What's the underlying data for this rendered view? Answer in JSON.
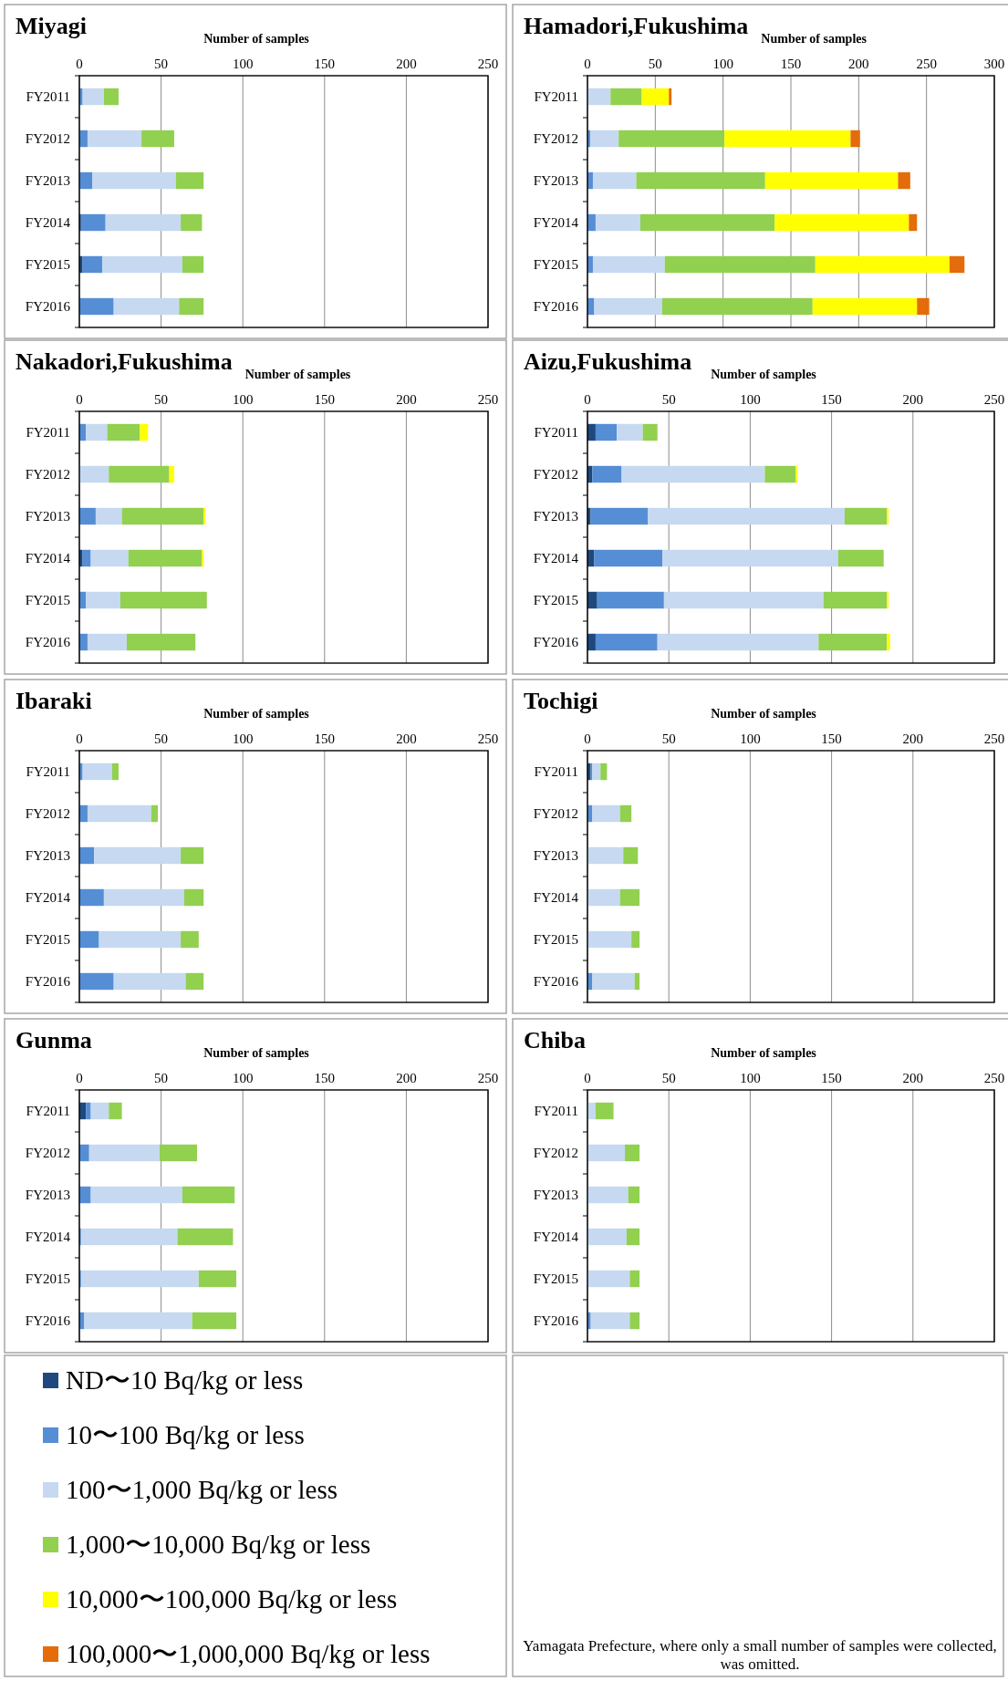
{
  "chart_data": [
    {
      "type": "bar",
      "orientation": "horizontal",
      "stacked": true,
      "title": "Miyagi",
      "xlabel": "Number of samples",
      "categories": [
        "FY2011",
        "FY2012",
        "FY2013",
        "FY2014",
        "FY2015",
        "FY2016"
      ],
      "xlim": [
        0,
        250
      ],
      "xticks": [
        0,
        50,
        100,
        150,
        200,
        250
      ],
      "grid": "x",
      "legend": "bottom left",
      "series": [
        {
          "name": "ND〜10 Bq/kg or less",
          "color": "#1f497d",
          "values": [
            0,
            0,
            0,
            1,
            2,
            0
          ]
        },
        {
          "name": "10〜100 Bq/kg or less",
          "color": "#558ed5",
          "values": [
            2,
            5,
            8,
            15,
            12,
            21
          ]
        },
        {
          "name": "100〜1,000 Bq/kg or less",
          "color": "#c6d9f1",
          "values": [
            13,
            33,
            51,
            46,
            49,
            40
          ]
        },
        {
          "name": "1,000〜10,000 Bq/kg or less",
          "color": "#92d050",
          "values": [
            9,
            20,
            17,
            13,
            13,
            15
          ]
        },
        {
          "name": "10,000〜100,000 Bq/kg or less",
          "color": "#ffff00",
          "values": [
            0,
            0,
            0,
            0,
            0,
            0
          ]
        },
        {
          "name": "100,000〜1,000,000 Bq/kg or less",
          "color": "#e46c0a",
          "values": [
            0,
            0,
            0,
            0,
            0,
            0
          ]
        }
      ]
    },
    {
      "type": "bar",
      "orientation": "horizontal",
      "stacked": true,
      "title": "Hamadori,Fukushima",
      "xlabel": "Number of samples",
      "categories": [
        "FY2011",
        "FY2012",
        "FY2013",
        "FY2014",
        "FY2015",
        "FY2016"
      ],
      "xlim": [
        0,
        300
      ],
      "xticks": [
        0,
        50,
        100,
        150,
        200,
        250,
        300
      ],
      "grid": "x",
      "series": [
        {
          "color": "#558ed5",
          "values": [
            0,
            2,
            4,
            6,
            4,
            5
          ]
        },
        {
          "color": "#c6d9f1",
          "values": [
            17,
            21,
            32,
            33,
            53,
            50
          ]
        },
        {
          "color": "#92d050",
          "values": [
            23,
            78,
            95,
            99,
            111,
            111
          ]
        },
        {
          "color": "#ffff00",
          "values": [
            20,
            93,
            98,
            99,
            99,
            77
          ]
        },
        {
          "color": "#e46c0a",
          "values": [
            2,
            7,
            9,
            6,
            11,
            9
          ]
        }
      ]
    },
    {
      "type": "bar",
      "orientation": "horizontal",
      "stacked": true,
      "title": "Nakadori,Fukushima",
      "xlabel": "Number of samples",
      "categories": [
        "FY2011",
        "FY2012",
        "FY2013",
        "FY2014",
        "FY2015",
        "FY2016"
      ],
      "xlim": [
        0,
        250
      ],
      "xticks": [
        0,
        50,
        100,
        150,
        200,
        250
      ],
      "grid": "x",
      "series": [
        {
          "color": "#1f497d",
          "values": [
            0,
            0,
            0,
            2,
            0,
            0
          ]
        },
        {
          "color": "#558ed5",
          "values": [
            4,
            0,
            10,
            5,
            4,
            5
          ]
        },
        {
          "color": "#c6d9f1",
          "values": [
            13,
            18,
            16,
            23,
            21,
            24
          ]
        },
        {
          "color": "#92d050",
          "values": [
            20,
            37,
            50,
            45,
            53,
            42
          ]
        },
        {
          "color": "#ffff00",
          "values": [
            5,
            3,
            1,
            1,
            0,
            0
          ]
        }
      ]
    },
    {
      "type": "bar",
      "orientation": "horizontal",
      "stacked": true,
      "title": "Aizu,Fukushima",
      "xlabel": "Number of samples",
      "categories": [
        "FY2011",
        "FY2012",
        "FY2013",
        "FY2014",
        "FY2015",
        "FY2016"
      ],
      "xlim": [
        0,
        250
      ],
      "xticks": [
        0,
        50,
        100,
        150,
        200,
        250
      ],
      "grid": "x",
      "series": [
        {
          "color": "#1f497d",
          "values": [
            5,
            3,
            2,
            4,
            6,
            5
          ]
        },
        {
          "color": "#558ed5",
          "values": [
            13,
            18,
            35,
            42,
            41,
            38
          ]
        },
        {
          "color": "#c6d9f1",
          "values": [
            16,
            88,
            121,
            108,
            98,
            99
          ]
        },
        {
          "color": "#92d050",
          "values": [
            9,
            19,
            26,
            28,
            39,
            42
          ]
        },
        {
          "color": "#ffff00",
          "values": [
            0,
            1,
            1,
            0,
            1,
            2
          ]
        }
      ]
    },
    {
      "type": "bar",
      "orientation": "horizontal",
      "stacked": true,
      "title": "Ibaraki",
      "xlabel": "Number of samples",
      "categories": [
        "FY2011",
        "FY2012",
        "FY2013",
        "FY2014",
        "FY2015",
        "FY2016"
      ],
      "xlim": [
        0,
        250
      ],
      "xticks": [
        0,
        50,
        100,
        150,
        200,
        250
      ],
      "grid": "x",
      "series": [
        {
          "color": "#558ed5",
          "values": [
            2,
            5,
            9,
            15,
            12,
            21
          ]
        },
        {
          "color": "#c6d9f1",
          "values": [
            18,
            39,
            53,
            49,
            50,
            44
          ]
        },
        {
          "color": "#92d050",
          "values": [
            4,
            4,
            14,
            12,
            11,
            11
          ]
        }
      ]
    },
    {
      "type": "bar",
      "orientation": "horizontal",
      "stacked": true,
      "title": "Tochigi",
      "xlabel": "Number of samples",
      "categories": [
        "FY2011",
        "FY2012",
        "FY2013",
        "FY2014",
        "FY2015",
        "FY2016"
      ],
      "xlim": [
        0,
        250
      ],
      "xticks": [
        0,
        50,
        100,
        150,
        200,
        250
      ],
      "grid": "x",
      "series": [
        {
          "color": "#1f497d",
          "values": [
            2,
            0,
            0,
            0,
            0,
            0
          ]
        },
        {
          "color": "#558ed5",
          "values": [
            1,
            3,
            0,
            0,
            0,
            3
          ]
        },
        {
          "color": "#c6d9f1",
          "values": [
            5,
            17,
            22,
            20,
            27,
            26
          ]
        },
        {
          "color": "#92d050",
          "values": [
            4,
            7,
            9,
            12,
            5,
            3
          ]
        }
      ]
    },
    {
      "type": "bar",
      "orientation": "horizontal",
      "stacked": true,
      "title": "Gunma",
      "xlabel": "Number of samples",
      "categories": [
        "FY2011",
        "FY2012",
        "FY2013",
        "FY2014",
        "FY2015",
        "FY2016"
      ],
      "xlim": [
        0,
        250
      ],
      "xticks": [
        0,
        50,
        100,
        150,
        200,
        250
      ],
      "grid": "x",
      "series": [
        {
          "color": "#1f497d",
          "values": [
            4,
            0,
            0,
            0,
            0,
            0
          ]
        },
        {
          "color": "#558ed5",
          "values": [
            3,
            6,
            7,
            1,
            1,
            3
          ]
        },
        {
          "color": "#c6d9f1",
          "values": [
            11,
            43,
            56,
            59,
            72,
            66
          ]
        },
        {
          "color": "#92d050",
          "values": [
            8,
            23,
            32,
            34,
            23,
            27
          ]
        }
      ]
    },
    {
      "type": "bar",
      "orientation": "horizontal",
      "stacked": true,
      "title": "Chiba",
      "xlabel": "Number of samples",
      "categories": [
        "FY2011",
        "FY2012",
        "FY2013",
        "FY2014",
        "FY2015",
        "FY2016"
      ],
      "xlim": [
        0,
        250
      ],
      "xticks": [
        0,
        50,
        100,
        150,
        200,
        250
      ],
      "grid": "x",
      "annotations": [
        "Yamagata Prefecture, where only a small number of samples were collected, was omitted."
      ],
      "series": [
        {
          "color": "#558ed5",
          "values": [
            0,
            0,
            0,
            0,
            0,
            2
          ]
        },
        {
          "color": "#c6d9f1",
          "values": [
            5,
            23,
            25,
            24,
            26,
            24
          ]
        },
        {
          "color": "#92d050",
          "values": [
            11,
            9,
            7,
            8,
            6,
            6
          ]
        }
      ]
    }
  ]
}
